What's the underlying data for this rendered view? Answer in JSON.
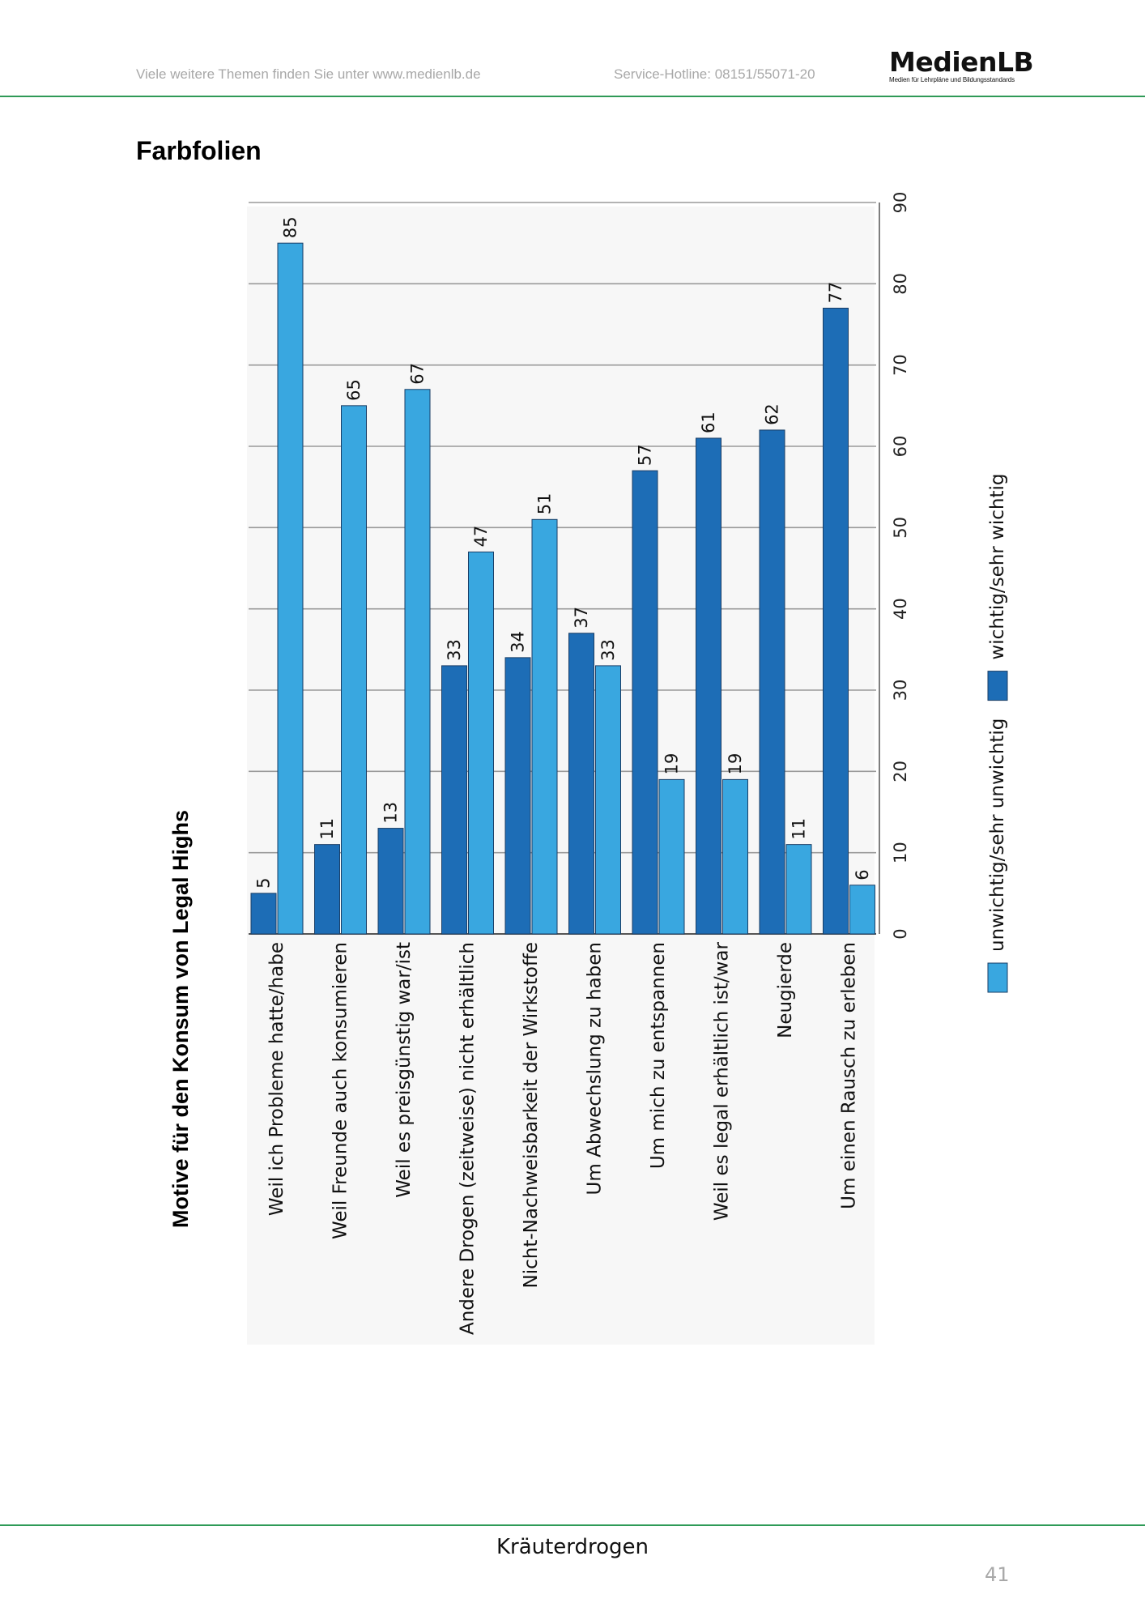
{
  "header": {
    "left_text": "Viele weitere Themen finden Sie unter www.medienlb.de",
    "hotline": "Service-Hotline: 08151/55071-20",
    "logo_main": "MedienLB",
    "logo_sub": "Medien für Lehrpläne und Bildungsstandards"
  },
  "section_title": "Farbfolien",
  "footer": {
    "title": "Kräuterdrogen",
    "page_number": "41"
  },
  "colors": {
    "dark_blue": "#1d6db6",
    "light_blue": "#39a7e0",
    "green_line": "#2f9a57"
  },
  "chart_data": {
    "type": "bar",
    "orientation": "vertical bars, page rotated 90°",
    "title": "Motive für den Konsum von Legal Highs",
    "categories": [
      "Weil ich Probleme hatte/habe",
      "Weil Freunde auch konsumieren",
      "Weil es preisgünstig war/ist",
      "Andere Drogen (zeitweise) nicht erhältlich",
      "Nicht-Nachweisbarkeit der Wirkstoffe",
      "Um Abwechslung zu haben",
      "Um mich zu entspannen",
      "Weil es legal erhältlich ist/war",
      "Neugierde",
      "Um einen Rausch zu erleben"
    ],
    "series": [
      {
        "name": "wichtig/sehr wichtig",
        "color": "#1d6db6",
        "values": [
          5,
          11,
          13,
          33,
          34,
          37,
          57,
          61,
          62,
          77
        ]
      },
      {
        "name": "unwichtig/sehr unwichtig",
        "color": "#39a7e0",
        "values": [
          85,
          65,
          67,
          47,
          51,
          33,
          19,
          19,
          11,
          6
        ]
      }
    ],
    "ylim": [
      0,
      90
    ],
    "yticks": [
      0,
      10,
      20,
      30,
      40,
      50,
      60,
      70,
      80,
      90
    ],
    "grid": true,
    "legend_order": [
      "unwichtig/sehr unwichtig",
      "wichtig/sehr wichtig"
    ],
    "legend_position": "right"
  }
}
